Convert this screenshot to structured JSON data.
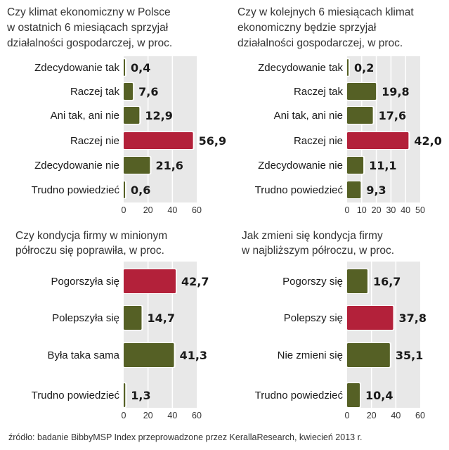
{
  "colors": {
    "panel": "#e8e8e8",
    "grid": "#ffffff",
    "bar": "#556025",
    "highlight": "#b3213a"
  },
  "source": "źródło: badanie BibbyMSP Index przeprowadzone przez KerallaResearch, kwiecień 2013 r.",
  "chart_data": [
    {
      "type": "bar",
      "orientation": "horizontal",
      "title_lines": [
        "Czy klimat ekonomiczny w Polsce",
        "w ostatnich 6 miesiącach sprzyjał",
        "działalności gospodarczej, w proc."
      ],
      "categories": [
        "Zdecydowanie tak",
        "Raczej tak",
        "Ani tak, ani nie",
        "Raczej nie",
        "Zdecydowanie nie",
        "Trudno powiedzieć"
      ],
      "values": [
        0.4,
        7.6,
        12.9,
        56.9,
        21.6,
        0.6
      ],
      "value_labels": [
        "0,4",
        "7,6",
        "12,9",
        "56,9",
        "21,6",
        "0,6"
      ],
      "highlight": [
        3
      ],
      "xlim": [
        0,
        60
      ],
      "xticks": [
        0,
        20,
        40,
        60
      ],
      "xtick_labels": [
        "0",
        "20",
        "40",
        "60"
      ]
    },
    {
      "type": "bar",
      "orientation": "horizontal",
      "title_lines": [
        "Czy w kolejnych 6 miesiącach klimat",
        "ekonomiczny będzie sprzyjał",
        "działalności gospodarczej, w proc."
      ],
      "categories": [
        "Zdecydowanie tak",
        "Raczej tak",
        "Ani tak, ani nie",
        "Raczej nie",
        "Zdecydowanie nie",
        "Trudno powiedzieć"
      ],
      "values": [
        0.2,
        19.8,
        17.6,
        42.0,
        11.1,
        9.3
      ],
      "value_labels": [
        "0,2",
        "19,8",
        "17,6",
        "42,0",
        "11,1",
        "9,3"
      ],
      "highlight": [
        3
      ],
      "xlim": [
        0,
        50
      ],
      "xticks": [
        0,
        10,
        20,
        30,
        40,
        50
      ],
      "xtick_labels": [
        "0",
        "10",
        "20",
        "30",
        "40",
        "50"
      ]
    },
    {
      "type": "bar",
      "orientation": "horizontal",
      "title_lines": [
        "Czy kondycja firmy w minionym",
        "półroczu się poprawiła, w proc."
      ],
      "categories": [
        "Pogorszyła się",
        "Polepszyła się",
        "Była taka sama",
        "Trudno powiedzieć"
      ],
      "values": [
        42.7,
        14.7,
        41.3,
        1.3
      ],
      "value_labels": [
        "42,7",
        "14,7",
        "41,3",
        "1,3"
      ],
      "highlight": [
        0
      ],
      "xlim": [
        0,
        60
      ],
      "xticks": [
        0,
        20,
        40,
        60
      ],
      "xtick_labels": [
        "0",
        "20",
        "40",
        "60"
      ]
    },
    {
      "type": "bar",
      "orientation": "horizontal",
      "title_lines": [
        "Jak zmieni się kondycja firmy",
        "w najbliższym półroczu, w proc."
      ],
      "categories": [
        "Pogorszy się",
        "Polepszy się",
        "Nie zmieni się",
        "Trudno powiedzieć"
      ],
      "values": [
        16.7,
        37.8,
        35.1,
        10.4
      ],
      "value_labels": [
        "16,7",
        "37,8",
        "35,1",
        "10,4"
      ],
      "highlight": [
        1
      ],
      "xlim": [
        0,
        60
      ],
      "xticks": [
        0,
        20,
        40,
        60
      ],
      "xtick_labels": [
        "0",
        "20",
        "40",
        "60"
      ]
    }
  ]
}
